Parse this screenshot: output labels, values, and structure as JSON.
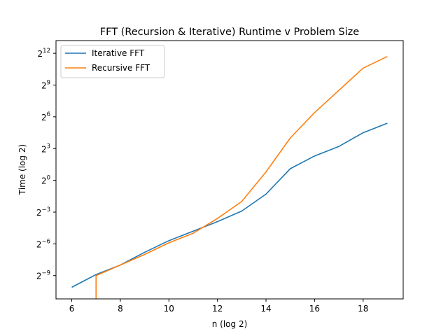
{
  "chart_data": {
    "type": "line",
    "title": "FFT (Recursion & Iterative) Runtime v Problem Size",
    "xlabel": "n (log 2)",
    "ylabel": "Time (log 2)",
    "xlim": [
      5.35,
      19.65
    ],
    "ylim": [
      -11.2,
      13.2
    ],
    "xticks": [
      6,
      8,
      10,
      12,
      14,
      16,
      18
    ],
    "yticks": [
      {
        "value": -9,
        "base": "2",
        "exp": "−9"
      },
      {
        "value": -6,
        "base": "2",
        "exp": "−6"
      },
      {
        "value": -3,
        "base": "2",
        "exp": "−3"
      },
      {
        "value": 0,
        "base": "2",
        "exp": "0"
      },
      {
        "value": 3,
        "base": "2",
        "exp": "3"
      },
      {
        "value": 6,
        "base": "2",
        "exp": "6"
      },
      {
        "value": 9,
        "base": "2",
        "exp": "9"
      },
      {
        "value": 12,
        "base": "2",
        "exp": "12"
      }
    ],
    "grid": false,
    "legend_position": "top-left",
    "series": [
      {
        "name": "Iterative FFT",
        "color": "#1f77b4",
        "x": [
          6,
          7,
          8,
          9,
          10,
          11,
          12,
          13,
          14,
          15,
          16,
          17,
          18,
          19
        ],
        "y": [
          -10.1,
          -8.9,
          -8.0,
          -6.8,
          -5.7,
          -4.8,
          -3.9,
          -2.9,
          -1.3,
          1.1,
          2.3,
          3.2,
          4.5,
          5.4
        ]
      },
      {
        "name": "Recursive FFT",
        "color": "#ff7f0e",
        "x": [
          7,
          7,
          8,
          9,
          10,
          11,
          12,
          13,
          14,
          15,
          16,
          17,
          18,
          19
        ],
        "y": [
          -11.2,
          -9.0,
          -8.0,
          -7.0,
          -5.9,
          -5.0,
          -3.6,
          -2.0,
          0.8,
          4.0,
          6.4,
          8.5,
          10.6,
          11.7
        ]
      }
    ]
  }
}
